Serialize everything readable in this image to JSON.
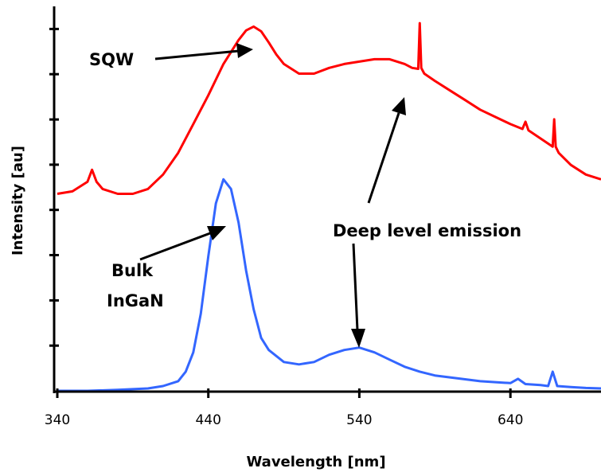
{
  "chart_data": {
    "type": "line",
    "title": "",
    "xlabel": "Wavelength [nm]",
    "ylabel": "Intensity [au]",
    "xlim": [
      340,
      700
    ],
    "ylim": [
      0,
      8
    ],
    "x_ticks": [
      340,
      440,
      540,
      640
    ],
    "y_tick_count": 8,
    "grid": false,
    "legend": "none",
    "series": [
      {
        "color": "#ff0000",
        "x": [
          340,
          350,
          360,
          363,
          366,
          370,
          380,
          390,
          400,
          410,
          420,
          430,
          440,
          450,
          460,
          465,
          470,
          475,
          480,
          485,
          490,
          500,
          510,
          520,
          530,
          540,
          550,
          560,
          570,
          575,
          579,
          580,
          581,
          583,
          590,
          600,
          610,
          620,
          630,
          640,
          648,
          650,
          652,
          660,
          668,
          669,
          670,
          672,
          680,
          690,
          700
        ],
        "y": [
          4.1,
          4.15,
          4.35,
          4.6,
          4.35,
          4.2,
          4.1,
          4.1,
          4.2,
          4.5,
          4.95,
          5.55,
          6.15,
          6.8,
          7.3,
          7.5,
          7.58,
          7.48,
          7.25,
          7.0,
          6.8,
          6.6,
          6.6,
          6.72,
          6.8,
          6.85,
          6.9,
          6.9,
          6.8,
          6.72,
          6.7,
          7.65,
          6.72,
          6.6,
          6.45,
          6.25,
          6.05,
          5.85,
          5.7,
          5.55,
          5.45,
          5.6,
          5.42,
          5.25,
          5.08,
          5.65,
          5.08,
          4.95,
          4.7,
          4.5,
          4.4
        ]
      },
      {
        "color": "#3366ff",
        "x": [
          340,
          360,
          380,
          400,
          410,
          420,
          425,
          430,
          435,
          440,
          445,
          450,
          455,
          460,
          465,
          470,
          475,
          480,
          490,
          500,
          510,
          520,
          530,
          540,
          550,
          560,
          570,
          580,
          590,
          600,
          610,
          620,
          630,
          640,
          645,
          650,
          660,
          665,
          668,
          671,
          680,
          690,
          700
        ],
        "y": [
          0.0,
          0.0,
          0.02,
          0.05,
          0.1,
          0.2,
          0.4,
          0.8,
          1.6,
          2.8,
          3.9,
          4.4,
          4.2,
          3.5,
          2.5,
          1.7,
          1.1,
          0.85,
          0.6,
          0.55,
          0.6,
          0.75,
          0.85,
          0.9,
          0.8,
          0.65,
          0.5,
          0.4,
          0.32,
          0.28,
          0.24,
          0.2,
          0.18,
          0.16,
          0.25,
          0.14,
          0.12,
          0.1,
          0.4,
          0.1,
          0.08,
          0.06,
          0.05
        ]
      }
    ],
    "annotations": [
      "SQW",
      "Deep level emission",
      "Bulk",
      "InGaN"
    ]
  }
}
